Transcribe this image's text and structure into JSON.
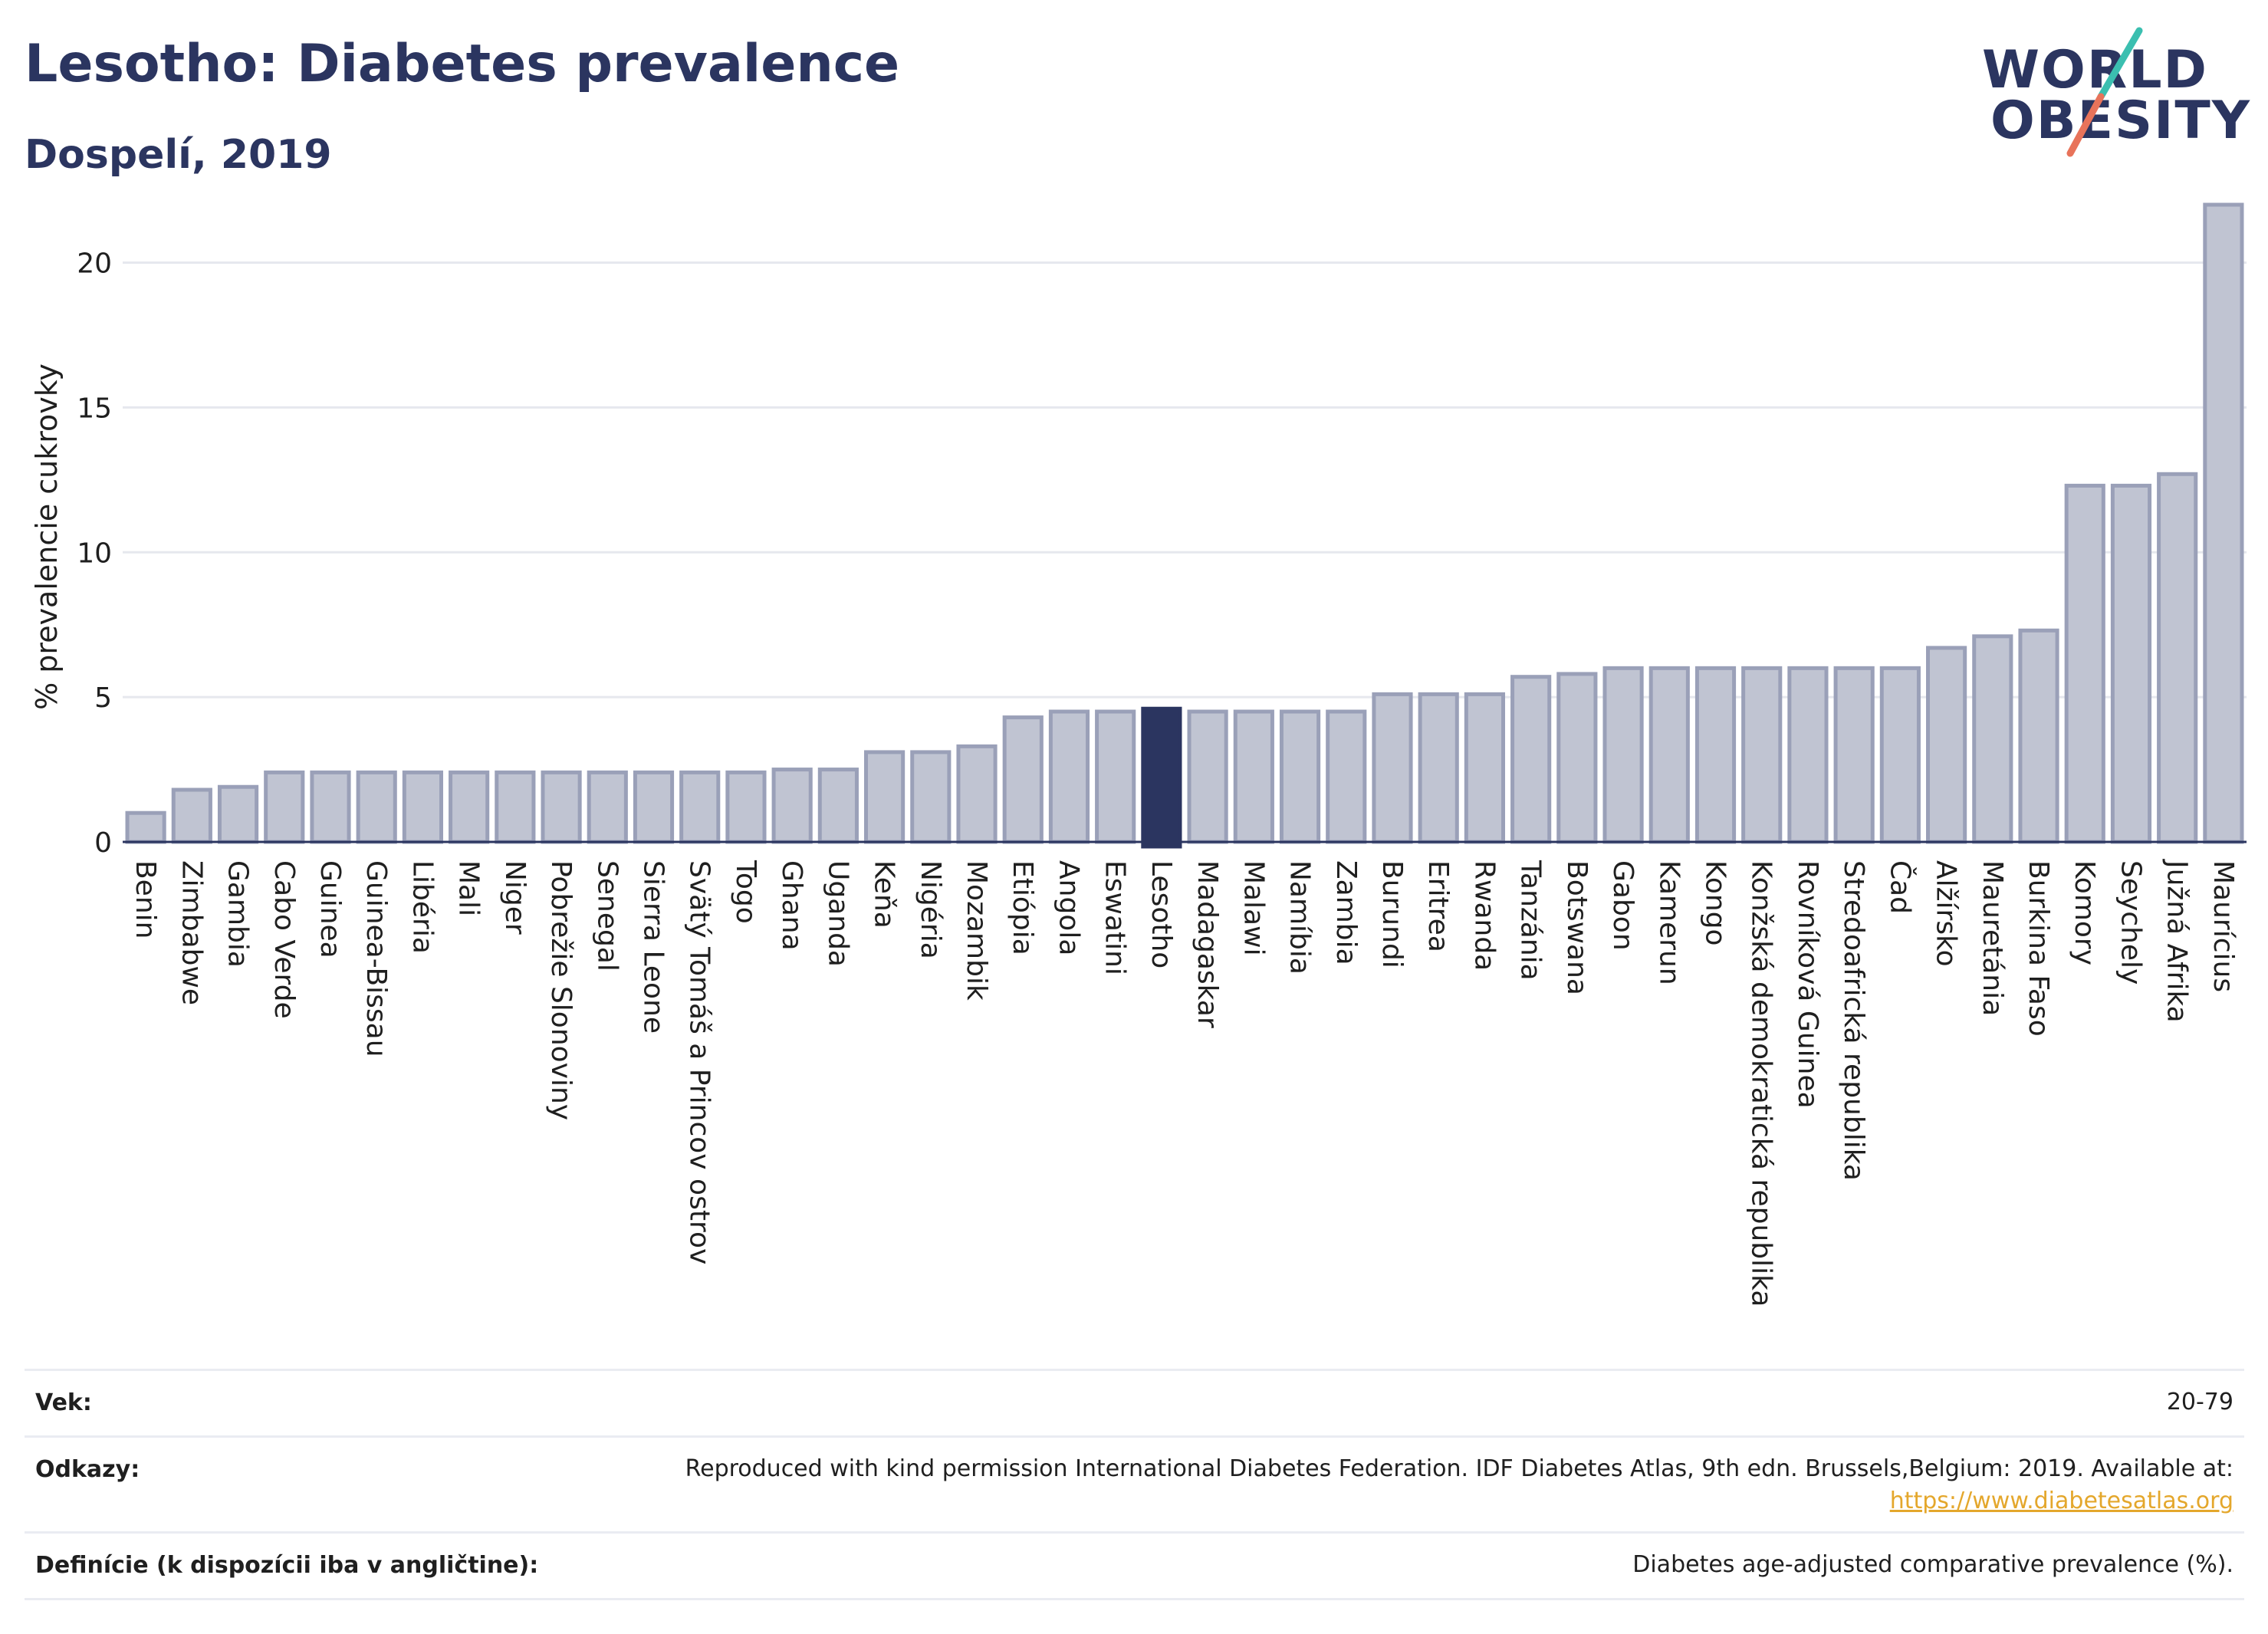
{
  "title": "Lesotho: Diabetes prevalence",
  "subtitle": "Dospelí, 2019",
  "logo": {
    "line1": "WORLD",
    "line2": "OBESITY",
    "accent_teal": "#3bbfb0",
    "accent_coral": "#e8735a"
  },
  "colors": {
    "bar_fill": "#c0c4d2",
    "bar_stroke": "#9aa0b8",
    "highlight": "#2b3560",
    "grid": "#e6e8ee",
    "axis": "#2b3560"
  },
  "chart_data": {
    "type": "bar",
    "ylabel": "% prevalencie cukrovky",
    "ylim": [
      0,
      22
    ],
    "yticks": [
      0,
      5,
      10,
      15,
      20
    ],
    "grid": true,
    "highlight": "Lesotho",
    "categories": [
      "Benin",
      "Zimbabwe",
      "Gambia",
      "Cabo Verde",
      "Guinea",
      "Guinea-Bissau",
      "Libéria",
      "Mali",
      "Niger",
      "Pobrežie Slonoviny",
      "Senegal",
      "Sierra Leone",
      "Svätý Tomáš a Princov ostrov",
      "Togo",
      "Ghana",
      "Uganda",
      "Keňa",
      "Nigéria",
      "Mozambik",
      "Etiópia",
      "Angola",
      "Eswatini",
      "Lesotho",
      "Madagaskar",
      "Malawi",
      "Namíbia",
      "Zambia",
      "Burundi",
      "Eritrea",
      "Rwanda",
      "Tanzánia",
      "Botswana",
      "Gabon",
      "Kamerun",
      "Kongo",
      "Konžská demokratická republika",
      "Rovníková Guinea",
      "Stredoafrická republika",
      "Čad",
      "Alžírsko",
      "Mauretánia",
      "Burkina Faso",
      "Komory",
      "Seychely",
      "Južná Afrika",
      "Maurícius"
    ],
    "values": [
      1.0,
      1.8,
      1.9,
      2.4,
      2.4,
      2.4,
      2.4,
      2.4,
      2.4,
      2.4,
      2.4,
      2.4,
      2.4,
      2.4,
      2.5,
      2.5,
      3.1,
      3.1,
      3.3,
      4.3,
      4.5,
      4.5,
      4.6,
      4.5,
      4.5,
      4.5,
      4.5,
      5.1,
      5.1,
      5.1,
      5.7,
      5.8,
      6.0,
      6.0,
      6.0,
      6.0,
      6.0,
      6.0,
      6.0,
      6.7,
      7.1,
      7.3,
      12.3,
      12.3,
      12.7,
      22.0
    ]
  },
  "footer": {
    "age_label": "Vek:",
    "age_value": "20-79",
    "refs_label": "Odkazy:",
    "refs_line1": "Reproduced with kind permission International Diabetes Federation. IDF Diabetes Atlas, 9th edn. Brussels,Belgium: 2019. Available at:",
    "refs_link": "https://www.diabetesatlas.org",
    "def_label": "Definície (k dispozícii iba v angličtine):",
    "def_value": "Diabetes age-adjusted comparative prevalence (%)."
  }
}
